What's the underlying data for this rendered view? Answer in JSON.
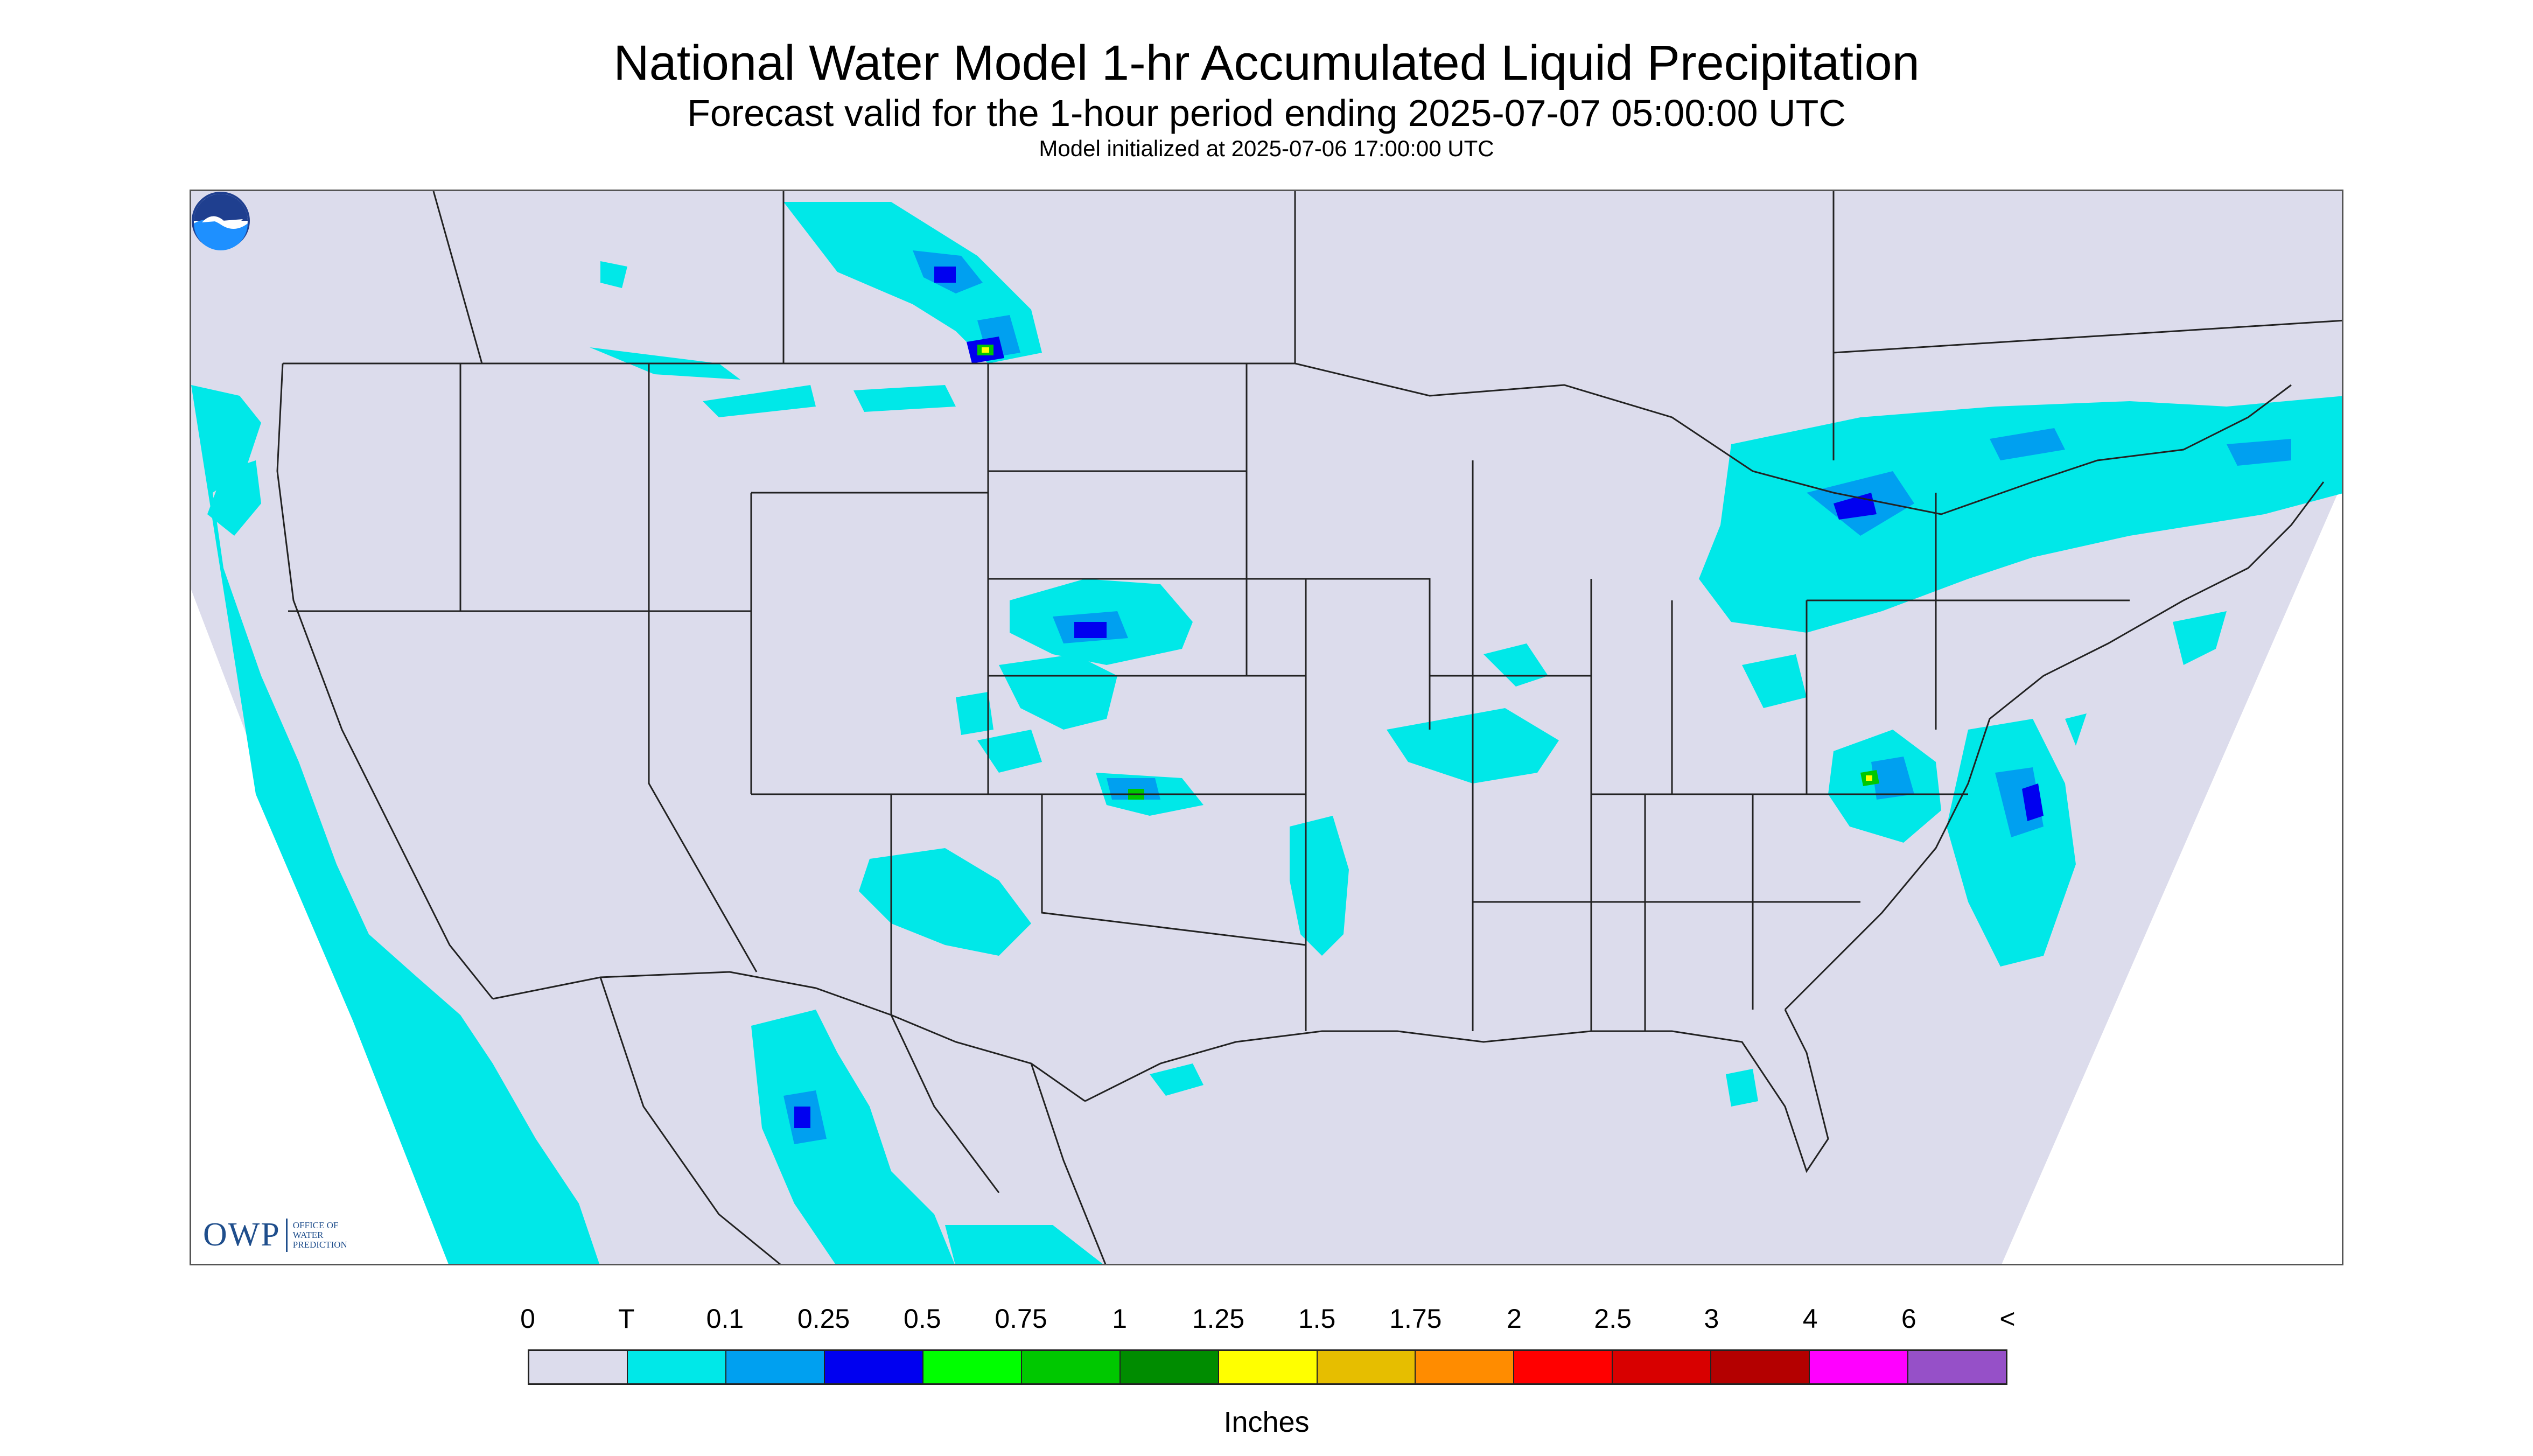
{
  "header": {
    "title": "National Water Model 1-hr Accumulated Liquid Precipitation",
    "subtitle": "Forecast valid for the 1-hour period ending 2025-07-07 05:00:00 UTC",
    "init": "Model initialized at 2025-07-06 17:00:00 UTC"
  },
  "logos": {
    "owp_main": "OWP",
    "owp_sub": "OFFICE OF WATER PREDICTION",
    "noaa": "NOAA"
  },
  "legend": {
    "labels": [
      "0",
      "T",
      "0.1",
      "0.25",
      "0.5",
      "0.75",
      "1",
      "1.25",
      "1.5",
      "1.75",
      "2",
      "2.5",
      "3",
      "4",
      "6",
      "<"
    ],
    "colors": [
      "#dcdcec",
      "#00e8e8",
      "#00a0f0",
      "#0000f0",
      "#00ff00",
      "#00c800",
      "#008c00",
      "#ffff00",
      "#e6be00",
      "#ff8c00",
      "#ff0000",
      "#d80000",
      "#b40000",
      "#ff00ff",
      "#9650c8"
    ],
    "units": "Inches"
  },
  "map": {
    "background": "#dcdcec",
    "trace_color": "#00e8e8",
    "light_blue": "#00a0f0",
    "blue": "#0000f0",
    "green": "#00c800",
    "yellow": "#ffff00",
    "boundary_color": "#222222"
  }
}
